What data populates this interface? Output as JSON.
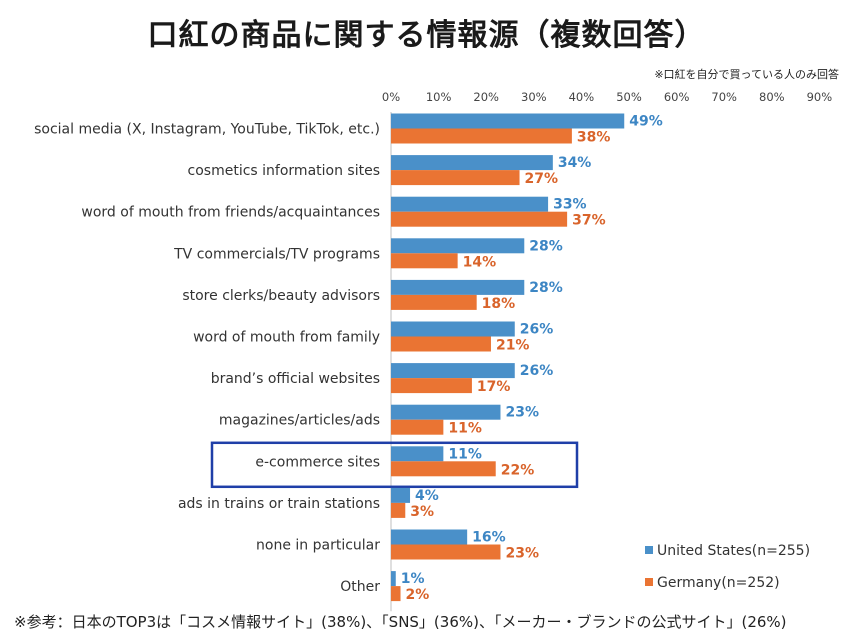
{
  "title": "口紅の商品に関する情報源（複数回答）",
  "note": "※口紅を自分で買っている人のみ回答",
  "footnote": "※参考：日本のTOP3は「コスメ情報サイト」(38%)、「SNS」(36%)、「メーカー・ブランドの公式サイト」(26%)",
  "colors": {
    "us": "#4a90c9",
    "de": "#ea7433",
    "highlight": "#1f3fa8"
  },
  "chart_data": {
    "type": "bar",
    "orientation": "horizontal",
    "categories": [
      "social media (X, Instagram, YouTube, TikTok, etc.)",
      "cosmetics information sites",
      "word of mouth from friends/acquaintances",
      "TV commercials/TV programs",
      "store clerks/beauty advisors",
      "word of mouth from family",
      "brand’s official websites",
      "magazines/articles/ads",
      "e-commerce sites",
      "ads in trains or train stations",
      "none in particular",
      "Other"
    ],
    "series": [
      {
        "name": "United States(n=255)",
        "values": [
          49,
          34,
          33,
          28,
          28,
          26,
          26,
          23,
          11,
          4,
          16,
          1
        ]
      },
      {
        "name": "Germany(n=252)",
        "values": [
          38,
          27,
          37,
          14,
          18,
          21,
          17,
          11,
          22,
          3,
          23,
          2
        ]
      }
    ],
    "value_labels": {
      "United States(n=255)": [
        "49%",
        "34%",
        "33%",
        "28%",
        "28%",
        "26%",
        "26%",
        "23%",
        "11%",
        "4%",
        "16%",
        "1%"
      ],
      "Germany(n=252)": [
        "38%",
        "27%",
        "37%",
        "14%",
        "18%",
        "21%",
        "17%",
        "11%",
        "22%",
        "3%",
        "23%",
        "2%"
      ]
    },
    "xlim": [
      0,
      90
    ],
    "ticks": [
      "0%",
      "10%",
      "20%",
      "30%",
      "40%",
      "50%",
      "60%",
      "70%",
      "80%",
      "90%"
    ],
    "highlighted_category": "e-commerce sites",
    "legend_position": "bottom-right",
    "grid": false
  }
}
